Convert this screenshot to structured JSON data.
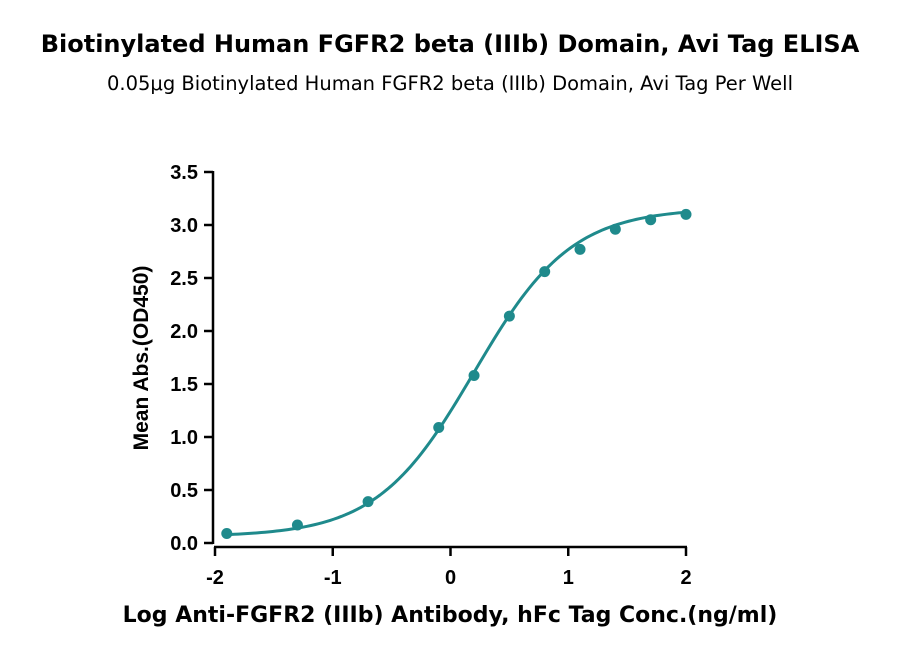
{
  "chart_data": {
    "type": "scatter",
    "title": "Biotinylated Human FGFR2 beta (IIIb) Domain, Avi Tag ELISA",
    "subtitle": "0.05μg Biotinylated Human FGFR2 beta (IIIb) Domain, Avi Tag Per Well",
    "xlabel": "Log Anti-FGFR2 (IIIb) Antibody, hFc Tag Conc.(ng/ml)",
    "ylabel": "Mean Abs.(OD450)",
    "xlim": [
      -2,
      2
    ],
    "ylim": [
      0,
      3.5
    ],
    "x_ticks": [
      "-2",
      "-1",
      "0",
      "1",
      "2"
    ],
    "y_ticks": [
      "0.0",
      "0.5",
      "1.0",
      "1.5",
      "2.0",
      "2.5",
      "3.0",
      "3.5"
    ],
    "grid": false,
    "color": "#1f8a8c",
    "series": [
      {
        "x": [
          -1.9,
          -1.3,
          -0.7,
          -0.1,
          0.2,
          0.5,
          0.8,
          1.1,
          1.4,
          1.7,
          2.0
        ],
        "y": [
          0.09,
          0.17,
          0.39,
          1.09,
          1.58,
          2.14,
          2.56,
          2.77,
          2.96,
          3.05,
          3.1
        ]
      }
    ],
    "fit": {
      "bottom": 0.06,
      "top": 3.16,
      "logEC50": 0.2,
      "hill": 1.05
    }
  }
}
